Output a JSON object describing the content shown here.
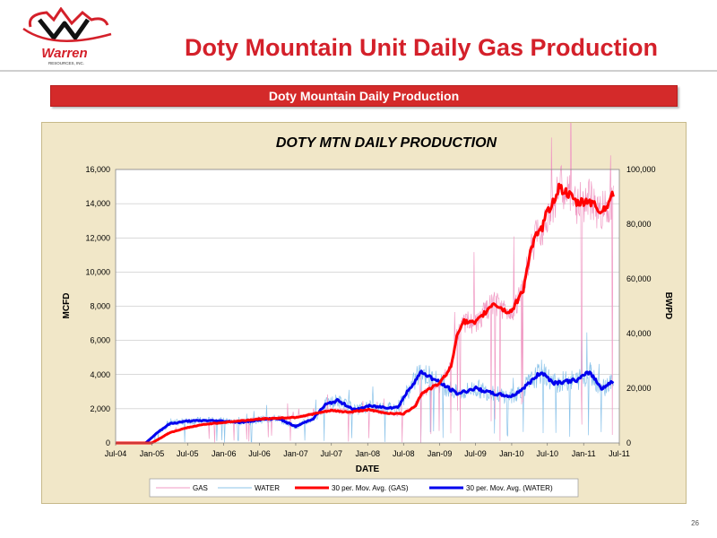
{
  "header": {
    "logo_text": "Warren",
    "logo_subtext": "RESOURCES, INC.",
    "title": "Doty Mountain Unit Daily Gas Production"
  },
  "banner": {
    "text": "Doty Mountain Daily Production"
  },
  "page_number": "26",
  "colors": {
    "title_red": "#d4202a",
    "gas": "#f09ac4",
    "water": "#8dc4ea",
    "gas_avg": "#ff0000",
    "water_avg": "#0000ee",
    "panel_bg": "#f1e7c8"
  },
  "chart_data": {
    "type": "line",
    "title": "DOTY MTN DAILY PRODUCTION",
    "xlabel": "DATE",
    "ylabel": "MCFD",
    "y2label": "BWPD",
    "x_ticks": [
      "Jul-04",
      "Jan-05",
      "Jul-05",
      "Jan-06",
      "Jul-06",
      "Jan-07",
      "Jul-07",
      "Jan-08",
      "Jul-08",
      "Jan-09",
      "Jul-09",
      "Jan-10",
      "Jul-10",
      "Jan-11",
      "Jul-11"
    ],
    "xlim": [
      "Jul-04",
      "Jul-11"
    ],
    "ylim": [
      0,
      16000
    ],
    "y_ticks": [
      "0",
      "2,000",
      "4,000",
      "6,000",
      "8,000",
      "10,000",
      "12,000",
      "14,000",
      "16,000"
    ],
    "y2lim": [
      0,
      100000
    ],
    "y2_ticks": [
      "0",
      "20,000",
      "40,000",
      "60,000",
      "80,000",
      "100,000"
    ],
    "grid": "horizontal",
    "legend_position": "bottom",
    "legend": [
      "GAS",
      "WATER",
      "30 per. Mov. Avg. (GAS)",
      "30 per. Mov. Avg. (WATER)"
    ],
    "series": [
      {
        "name": "30 per. Mov. Avg. (GAS)",
        "axis": "left",
        "x": [
          "2004-07-01",
          "2004-10-01",
          "2005-01-01",
          "2005-02-01",
          "2005-04-01",
          "2005-07-01",
          "2005-10-01",
          "2006-01-01",
          "2006-04-01",
          "2006-07-01",
          "2006-10-01",
          "2007-01-01",
          "2007-04-01",
          "2007-07-01",
          "2007-10-01",
          "2008-01-01",
          "2008-04-01",
          "2008-07-01",
          "2008-09-01",
          "2008-10-01",
          "2009-01-01",
          "2009-03-01",
          "2009-04-01",
          "2009-05-01",
          "2009-07-01",
          "2009-09-01",
          "2009-10-01",
          "2009-12-01",
          "2010-01-01",
          "2010-03-01",
          "2010-04-01",
          "2010-05-01",
          "2010-06-01",
          "2010-07-01",
          "2010-08-01",
          "2010-09-01",
          "2010-12-01",
          "2011-02-01",
          "2011-04-01",
          "2011-06-01"
        ],
        "values": [
          0,
          0,
          0,
          200,
          600,
          900,
          1100,
          1200,
          1300,
          1400,
          1450,
          1500,
          1700,
          1900,
          1800,
          1950,
          1750,
          1700,
          2200,
          2900,
          3500,
          4500,
          6500,
          7100,
          7000,
          7800,
          8200,
          7700,
          7700,
          9000,
          11000,
          12000,
          12500,
          13500,
          14200,
          15000,
          14000,
          14200,
          13500,
          14500
        ]
      },
      {
        "name": "30 per. Mov. Avg. (WATER)",
        "axis": "right",
        "x": [
          "2004-07-01",
          "2004-12-01",
          "2005-02-01",
          "2005-04-01",
          "2005-07-01",
          "2005-10-01",
          "2006-01-01",
          "2006-04-01",
          "2006-07-01",
          "2006-10-01",
          "2007-01-01",
          "2007-04-01",
          "2007-06-01",
          "2007-08-01",
          "2007-11-01",
          "2008-01-01",
          "2008-04-01",
          "2008-06-01",
          "2008-08-01",
          "2008-10-01",
          "2009-01-01",
          "2009-04-01",
          "2009-07-01",
          "2009-10-01",
          "2010-01-01",
          "2010-03-01",
          "2010-06-01",
          "2010-08-01",
          "2010-10-01",
          "2010-12-01",
          "2011-02-01",
          "2011-04-01",
          "2011-06-01"
        ],
        "values": [
          0,
          0,
          4000,
          7000,
          8000,
          8200,
          8000,
          7500,
          8500,
          9000,
          6000,
          9000,
          14000,
          15500,
          12000,
          13500,
          13000,
          13000,
          20000,
          26000,
          22000,
          18000,
          20000,
          18000,
          17000,
          20000,
          26000,
          22000,
          22500,
          23000,
          26000,
          20000,
          22500
        ]
      },
      {
        "name": "GAS",
        "axis": "left",
        "style": "noisy raw daily data around the gas moving average"
      },
      {
        "name": "WATER",
        "axis": "right",
        "style": "noisy raw daily data around the water moving average"
      }
    ]
  }
}
